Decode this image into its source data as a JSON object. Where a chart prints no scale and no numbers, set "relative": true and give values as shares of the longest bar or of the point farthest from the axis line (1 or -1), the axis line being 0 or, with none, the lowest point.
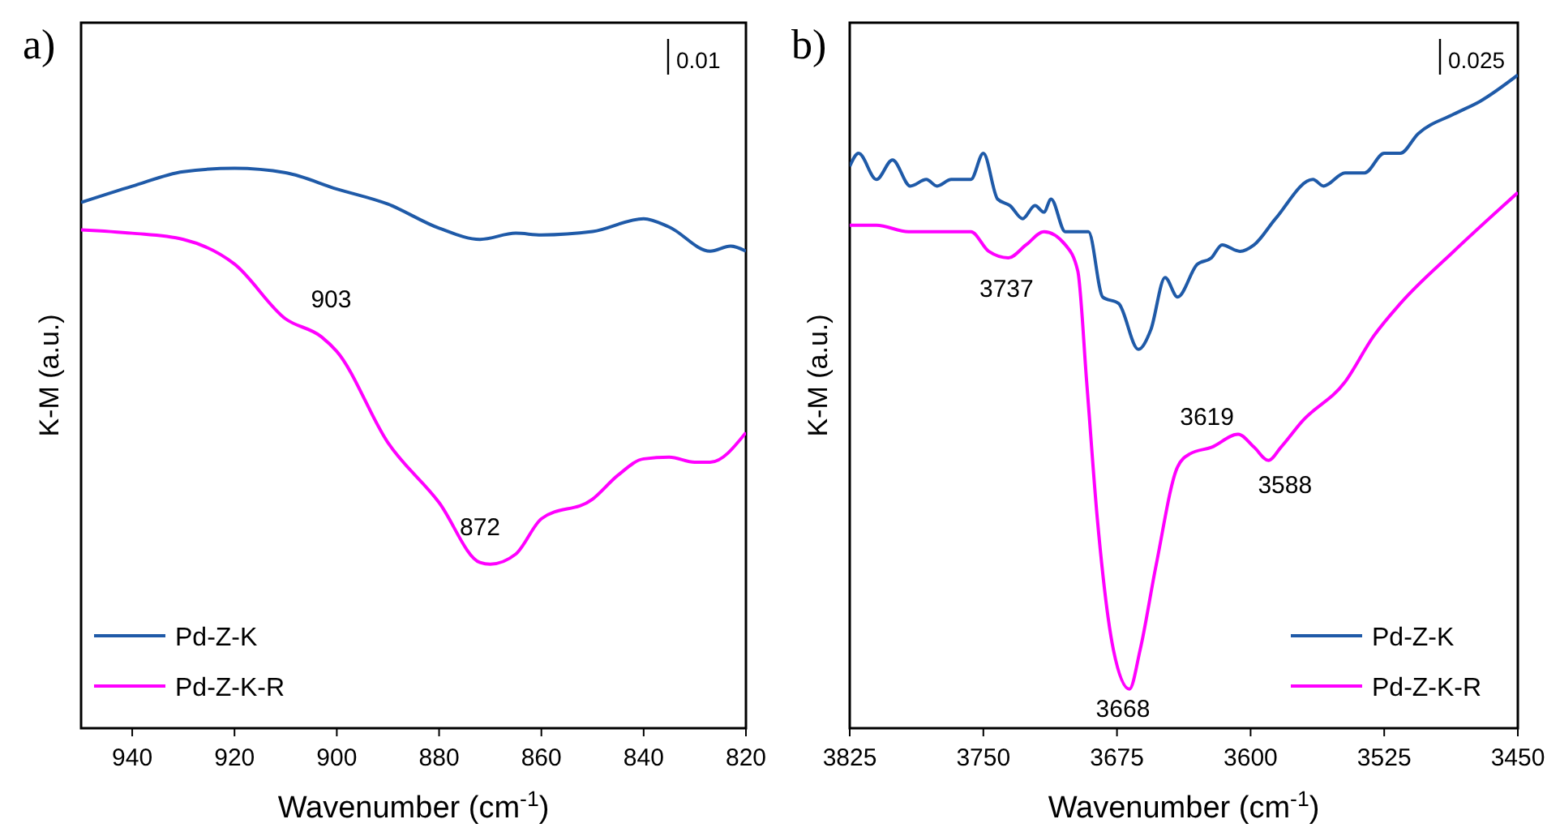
{
  "chart_data": [
    {
      "type": "line",
      "title": "a)",
      "xlabel": "Wavenumber (cm$^{-1}$)",
      "ylabel": "K-M (a.u.)",
      "relative": true,
      "xlim": [
        950,
        820
      ],
      "xticks": [
        940,
        920,
        900,
        880,
        860,
        840,
        820
      ],
      "legend": "bottom left",
      "tick_labels": "x",
      "annotations": [
        "0.01",
        {
          "text": "903",
          "x": 903,
          "y": 0.699
        },
        {
          "text": "872",
          "x": 872,
          "y": 0.293
        }
      ],
      "series": [
        {
          "name": "Pd-Z-K",
          "color": "#1f5aa8",
          "x": [
            950,
            940,
            930,
            920,
            910,
            900,
            890,
            880,
            872,
            865,
            860,
            850,
            840,
            835,
            827,
            823,
            820
          ],
          "values": [
            0.939,
            0.968,
            0.994,
            1.0,
            0.992,
            0.963,
            0.936,
            0.893,
            0.873,
            0.884,
            0.881,
            0.887,
            0.91,
            0.895,
            0.852,
            0.861,
            0.852
          ]
        },
        {
          "name": "Pd-Z-K-R",
          "color": "#ff00ff",
          "x": [
            950,
            940,
            930,
            920,
            910,
            903,
            900,
            890,
            880,
            872,
            870,
            865,
            860,
            850,
            845,
            840,
            835,
            830,
            827,
            820
          ],
          "values": [
            0.89,
            0.884,
            0.873,
            0.829,
            0.731,
            0.699,
            0.673,
            0.51,
            0.403,
            0.296,
            0.293,
            0.311,
            0.374,
            0.409,
            0.452,
            0.481,
            0.484,
            0.475,
            0.475,
            0.528
          ]
        }
      ]
    },
    {
      "type": "line",
      "title": "b)",
      "xlabel": "Wavenumber (cm$^{-1}$)",
      "ylabel": "K-M (a.u.)",
      "relative": true,
      "xlim": [
        3825,
        3450
      ],
      "xticks": [
        3825,
        3750,
        3675,
        3600,
        3525,
        3450
      ],
      "legend": "bottom right",
      "tick_labels": "x",
      "annotations": [
        "0.025",
        {
          "text": "3737",
          "x": 3737,
          "y": 0.72
        },
        {
          "text": "3668",
          "x": 3668,
          "y": 0.06
        },
        {
          "text": "3619",
          "x": 3619,
          "y": 0.43
        },
        {
          "text": "3588",
          "x": 3588,
          "y": 0.43
        }
      ],
      "series": [
        {
          "name": "Pd-Z-K",
          "color": "#1f5aa8",
          "x": [
            3825,
            3820,
            3810,
            3801,
            3791,
            3782,
            3776,
            3768,
            3757,
            3750,
            3742,
            3735,
            3728,
            3721,
            3716,
            3712,
            3704,
            3697,
            3691,
            3683,
            3674,
            3663,
            3656,
            3648,
            3641,
            3630,
            3622,
            3616,
            3606,
            3598,
            3586,
            3565,
            3559,
            3547,
            3536,
            3525,
            3516,
            3506,
            3486,
            3471,
            3450
          ],
          "values": [
            0.86,
            0.88,
            0.84,
            0.87,
            0.83,
            0.84,
            0.83,
            0.84,
            0.84,
            0.88,
            0.81,
            0.8,
            0.78,
            0.8,
            0.79,
            0.81,
            0.76,
            0.76,
            0.76,
            0.66,
            0.65,
            0.58,
            0.61,
            0.69,
            0.66,
            0.71,
            0.72,
            0.74,
            0.73,
            0.74,
            0.78,
            0.84,
            0.83,
            0.85,
            0.85,
            0.88,
            0.88,
            0.91,
            0.94,
            0.96,
            1
          ]
        },
        {
          "name": "Pd-Z-K-R",
          "color": "#ff00ff",
          "x": [
            3825,
            3810,
            3792,
            3774,
            3757,
            3747,
            3736,
            3726,
            3716,
            3704,
            3697,
            3692,
            3686,
            3677,
            3668,
            3662,
            3653,
            3641,
            3634,
            3622,
            3607,
            3598,
            3590,
            3583,
            3571,
            3547,
            3531,
            3516,
            3486,
            3450
          ],
          "values": [
            0.77,
            0.77,
            0.76,
            0.76,
            0.76,
            0.73,
            0.72,
            0.74,
            0.76,
            0.74,
            0.7,
            0.53,
            0.32,
            0.12,
            0.06,
            0.12,
            0.25,
            0.4,
            0.42,
            0.43,
            0.45,
            0.43,
            0.41,
            0.43,
            0.47,
            0.53,
            0.6,
            0.65,
            0.73,
            0.82
          ]
        }
      ]
    }
  ]
}
